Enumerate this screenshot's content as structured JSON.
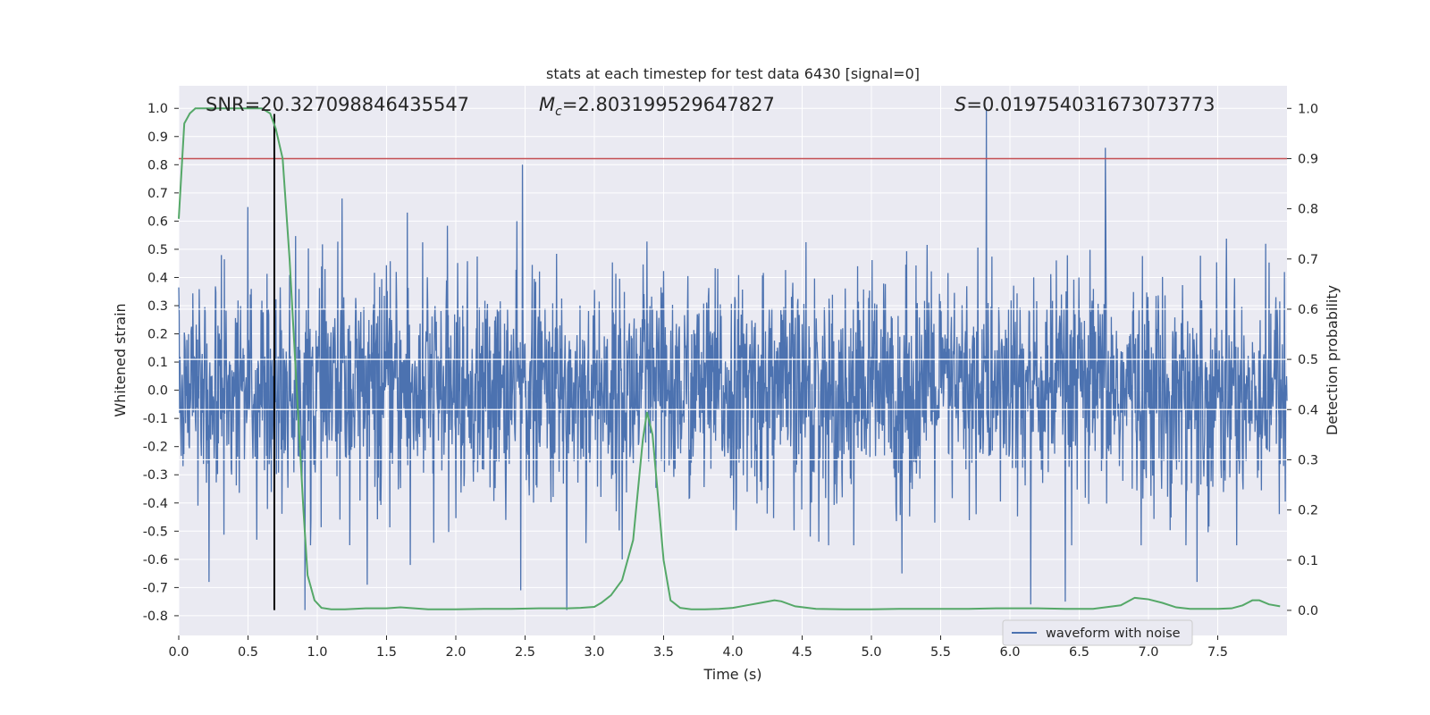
{
  "chart_data": {
    "type": "line",
    "title": "stats at each timestep for test data 6430 [signal=0]",
    "xlabel": "Time (s)",
    "ylabel_left": "Whitened strain",
    "ylabel_right": "Detection probability",
    "xlim": [
      0,
      8
    ],
    "ylim_left": [
      -0.87,
      1.08
    ],
    "ylim_right": [
      -0.05,
      1.045
    ],
    "x_ticks": [
      "0.0",
      "0.5",
      "1.0",
      "1.5",
      "2.0",
      "2.5",
      "3.0",
      "3.5",
      "4.0",
      "4.5",
      "5.0",
      "5.5",
      "6.0",
      "6.5",
      "7.0",
      "7.5"
    ],
    "y_left_ticks": [
      "-0.8",
      "-0.7",
      "-0.6",
      "-0.5",
      "-0.4",
      "-0.3",
      "-0.2",
      "-0.1",
      "0.0",
      "0.1",
      "0.2",
      "0.3",
      "0.4",
      "0.5",
      "0.6",
      "0.7",
      "0.8",
      "0.9",
      "1.0"
    ],
    "y_right_ticks": [
      "0.0",
      "0.1",
      "0.2",
      "0.3",
      "0.4",
      "0.5",
      "0.6",
      "0.7",
      "0.8",
      "0.9",
      "1.0"
    ],
    "grid": true,
    "legend_position": "lower-right",
    "colors": {
      "waveform": "#4c72b0",
      "probability": "#55a868",
      "threshold": "#c44e52",
      "marker": "#000000",
      "plot_background": "#eaeaf2",
      "grid": "#ffffff"
    },
    "annotations": {
      "snr_label": "SNR=20.327098846435547",
      "mc_symbol": "M",
      "mc_subscript": "c",
      "mc_value": "=2.803199529647827",
      "s_symbol": "S",
      "s_value": "=0.019754031673073773"
    },
    "series": [
      {
        "name": "waveform with noise",
        "axis": "left",
        "description_range": [
          -0.78,
          1.0
        ],
        "spikes": [
          {
            "x": 0.22,
            "y": -0.68
          },
          {
            "x": 0.5,
            "y": 0.65
          },
          {
            "x": 0.69,
            "y": 0.55
          },
          {
            "x": 0.91,
            "y": -0.78
          },
          {
            "x": 1.18,
            "y": 0.68
          },
          {
            "x": 1.36,
            "y": -0.69
          },
          {
            "x": 1.65,
            "y": 0.63
          },
          {
            "x": 1.67,
            "y": -0.62
          },
          {
            "x": 2.48,
            "y": 0.8
          },
          {
            "x": 2.47,
            "y": -0.71
          },
          {
            "x": 2.8,
            "y": -0.78
          },
          {
            "x": 3.2,
            "y": -0.6
          },
          {
            "x": 5.22,
            "y": -0.65
          },
          {
            "x": 5.83,
            "y": 1.0
          },
          {
            "x": 6.15,
            "y": -0.76
          },
          {
            "x": 6.4,
            "y": -0.75
          },
          {
            "x": 6.69,
            "y": 0.86
          },
          {
            "x": 7.35,
            "y": -0.68
          }
        ]
      },
      {
        "name": "detection probability",
        "axis": "right",
        "x": [
          0.0,
          0.04,
          0.08,
          0.12,
          0.2,
          0.3,
          0.4,
          0.5,
          0.6,
          0.66,
          0.7,
          0.75,
          0.8,
          0.85,
          0.9,
          0.93,
          0.98,
          1.03,
          1.1,
          1.2,
          1.35,
          1.5,
          1.6,
          1.7,
          1.8,
          2.0,
          2.2,
          2.4,
          2.6,
          2.8,
          2.9,
          3.0,
          3.05,
          3.12,
          3.2,
          3.28,
          3.35,
          3.38,
          3.42,
          3.5,
          3.55,
          3.62,
          3.7,
          3.8,
          3.9,
          4.0,
          4.1,
          4.2,
          4.3,
          4.35,
          4.45,
          4.6,
          4.8,
          5.0,
          5.2,
          5.4,
          5.5,
          5.7,
          5.9,
          6.0,
          6.2,
          6.4,
          6.6,
          6.8,
          6.9,
          7.0,
          7.1,
          7.2,
          7.3,
          7.5,
          7.6,
          7.68,
          7.75,
          7.8,
          7.87,
          7.95
        ],
        "y": [
          0.78,
          0.97,
          0.99,
          1.0,
          1.0,
          1.0,
          1.0,
          1.0,
          1.0,
          0.99,
          0.96,
          0.9,
          0.7,
          0.45,
          0.2,
          0.07,
          0.02,
          0.005,
          0.002,
          0.002,
          0.004,
          0.004,
          0.006,
          0.004,
          0.002,
          0.002,
          0.003,
          0.003,
          0.004,
          0.004,
          0.005,
          0.007,
          0.015,
          0.03,
          0.06,
          0.14,
          0.34,
          0.395,
          0.35,
          0.1,
          0.02,
          0.005,
          0.002,
          0.002,
          0.003,
          0.005,
          0.01,
          0.015,
          0.02,
          0.018,
          0.008,
          0.003,
          0.002,
          0.002,
          0.003,
          0.003,
          0.003,
          0.003,
          0.004,
          0.004,
          0.004,
          0.003,
          0.003,
          0.01,
          0.025,
          0.022,
          0.015,
          0.006,
          0.003,
          0.003,
          0.004,
          0.01,
          0.02,
          0.02,
          0.012,
          0.008
        ]
      },
      {
        "name": "threshold",
        "axis": "right",
        "y": 0.9
      },
      {
        "name": "marker",
        "axis": "left",
        "x": 0.69,
        "y_range": [
          -0.78,
          0.98
        ]
      }
    ]
  }
}
